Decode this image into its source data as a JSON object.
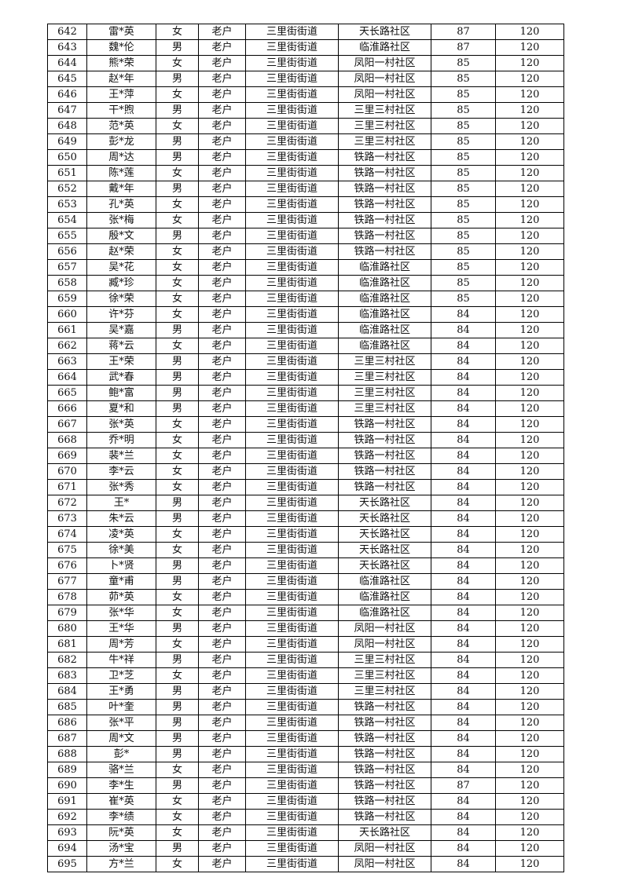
{
  "table": {
    "rows": [
      [
        "642",
        "雷*英",
        "女",
        "老户",
        "三里街街道",
        "天长路社区",
        "87",
        "120"
      ],
      [
        "643",
        "魏*伦",
        "男",
        "老户",
        "三里街街道",
        "临淮路社区",
        "87",
        "120"
      ],
      [
        "644",
        "熊*荣",
        "女",
        "老户",
        "三里街街道",
        "凤阳一村社区",
        "85",
        "120"
      ],
      [
        "645",
        "赵*年",
        "男",
        "老户",
        "三里街街道",
        "凤阳一村社区",
        "85",
        "120"
      ],
      [
        "646",
        "王*萍",
        "女",
        "老户",
        "三里街街道",
        "凤阳一村社区",
        "85",
        "120"
      ],
      [
        "647",
        "干*煦",
        "男",
        "老户",
        "三里街街道",
        "三里三村社区",
        "85",
        "120"
      ],
      [
        "648",
        "范*英",
        "女",
        "老户",
        "三里街街道",
        "三里三村社区",
        "85",
        "120"
      ],
      [
        "649",
        "彭*龙",
        "男",
        "老户",
        "三里街街道",
        "三里三村社区",
        "85",
        "120"
      ],
      [
        "650",
        "周*达",
        "男",
        "老户",
        "三里街街道",
        "铁路一村社区",
        "85",
        "120"
      ],
      [
        "651",
        "陈*莲",
        "女",
        "老户",
        "三里街街道",
        "铁路一村社区",
        "85",
        "120"
      ],
      [
        "652",
        "戴*年",
        "男",
        "老户",
        "三里街街道",
        "铁路一村社区",
        "85",
        "120"
      ],
      [
        "653",
        "孔*英",
        "女",
        "老户",
        "三里街街道",
        "铁路一村社区",
        "85",
        "120"
      ],
      [
        "654",
        "张*梅",
        "女",
        "老户",
        "三里街街道",
        "铁路一村社区",
        "85",
        "120"
      ],
      [
        "655",
        "殷*文",
        "男",
        "老户",
        "三里街街道",
        "铁路一村社区",
        "85",
        "120"
      ],
      [
        "656",
        "赵*荣",
        "女",
        "老户",
        "三里街街道",
        "铁路一村社区",
        "85",
        "120"
      ],
      [
        "657",
        "吴*花",
        "女",
        "老户",
        "三里街街道",
        "临淮路社区",
        "85",
        "120"
      ],
      [
        "658",
        "臧*珍",
        "女",
        "老户",
        "三里街街道",
        "临淮路社区",
        "85",
        "120"
      ],
      [
        "659",
        "徐*荣",
        "女",
        "老户",
        "三里街街道",
        "临淮路社区",
        "85",
        "120"
      ],
      [
        "660",
        "许*芬",
        "女",
        "老户",
        "三里街街道",
        "临淮路社区",
        "84",
        "120"
      ],
      [
        "661",
        "吴*嘉",
        "男",
        "老户",
        "三里街街道",
        "临淮路社区",
        "84",
        "120"
      ],
      [
        "662",
        "蒋*云",
        "女",
        "老户",
        "三里街街道",
        "临淮路社区",
        "84",
        "120"
      ],
      [
        "663",
        "王*荣",
        "男",
        "老户",
        "三里街街道",
        "三里三村社区",
        "84",
        "120"
      ],
      [
        "664",
        "武*春",
        "男",
        "老户",
        "三里街街道",
        "三里三村社区",
        "84",
        "120"
      ],
      [
        "665",
        "鲍*富",
        "男",
        "老户",
        "三里街街道",
        "三里三村社区",
        "84",
        "120"
      ],
      [
        "666",
        "夏*和",
        "男",
        "老户",
        "三里街街道",
        "三里三村社区",
        "84",
        "120"
      ],
      [
        "667",
        "张*英",
        "女",
        "老户",
        "三里街街道",
        "铁路一村社区",
        "84",
        "120"
      ],
      [
        "668",
        "乔*明",
        "女",
        "老户",
        "三里街街道",
        "铁路一村社区",
        "84",
        "120"
      ],
      [
        "669",
        "裴*兰",
        "女",
        "老户",
        "三里街街道",
        "铁路一村社区",
        "84",
        "120"
      ],
      [
        "670",
        "李*云",
        "女",
        "老户",
        "三里街街道",
        "铁路一村社区",
        "84",
        "120"
      ],
      [
        "671",
        "张*秀",
        "女",
        "老户",
        "三里街街道",
        "铁路一村社区",
        "84",
        "120"
      ],
      [
        "672",
        "王*",
        "男",
        "老户",
        "三里街街道",
        "天长路社区",
        "84",
        "120"
      ],
      [
        "673",
        "朱*云",
        "男",
        "老户",
        "三里街街道",
        "天长路社区",
        "84",
        "120"
      ],
      [
        "674",
        "凌*英",
        "女",
        "老户",
        "三里街街道",
        "天长路社区",
        "84",
        "120"
      ],
      [
        "675",
        "徐*美",
        "女",
        "老户",
        "三里街街道",
        "天长路社区",
        "84",
        "120"
      ],
      [
        "676",
        "卜*贤",
        "男",
        "老户",
        "三里街街道",
        "天长路社区",
        "84",
        "120"
      ],
      [
        "677",
        "童*甫",
        "男",
        "老户",
        "三里街街道",
        "临淮路社区",
        "84",
        "120"
      ],
      [
        "678",
        "茆*英",
        "女",
        "老户",
        "三里街街道",
        "临淮路社区",
        "84",
        "120"
      ],
      [
        "679",
        "张*华",
        "女",
        "老户",
        "三里街街道",
        "临淮路社区",
        "84",
        "120"
      ],
      [
        "680",
        "王*华",
        "男",
        "老户",
        "三里街街道",
        "凤阳一村社区",
        "84",
        "120"
      ],
      [
        "681",
        "周*芳",
        "女",
        "老户",
        "三里街街道",
        "凤阳一村社区",
        "84",
        "120"
      ],
      [
        "682",
        "牛*祥",
        "男",
        "老户",
        "三里街街道",
        "三里三村社区",
        "84",
        "120"
      ],
      [
        "683",
        "卫*芝",
        "女",
        "老户",
        "三里街街道",
        "三里三村社区",
        "84",
        "120"
      ],
      [
        "684",
        "王*勇",
        "男",
        "老户",
        "三里街街道",
        "三里三村社区",
        "84",
        "120"
      ],
      [
        "685",
        "叶*奎",
        "男",
        "老户",
        "三里街街道",
        "铁路一村社区",
        "84",
        "120"
      ],
      [
        "686",
        "张*平",
        "男",
        "老户",
        "三里街街道",
        "铁路一村社区",
        "84",
        "120"
      ],
      [
        "687",
        "周*文",
        "男",
        "老户",
        "三里街街道",
        "铁路一村社区",
        "84",
        "120"
      ],
      [
        "688",
        "彭*",
        "男",
        "老户",
        "三里街街道",
        "铁路一村社区",
        "84",
        "120"
      ],
      [
        "689",
        "骆*兰",
        "女",
        "老户",
        "三里街街道",
        "铁路一村社区",
        "84",
        "120"
      ],
      [
        "690",
        "李*生",
        "男",
        "老户",
        "三里街街道",
        "铁路一村社区",
        "87",
        "120"
      ],
      [
        "691",
        "崔*英",
        "女",
        "老户",
        "三里街街道",
        "铁路一村社区",
        "84",
        "120"
      ],
      [
        "692",
        "李*绩",
        "女",
        "老户",
        "三里街街道",
        "铁路一村社区",
        "84",
        "120"
      ],
      [
        "693",
        "阮*英",
        "女",
        "老户",
        "三里街街道",
        "天长路社区",
        "84",
        "120"
      ],
      [
        "694",
        "汤*宝",
        "男",
        "老户",
        "三里街街道",
        "凤阳一村社区",
        "84",
        "120"
      ],
      [
        "695",
        "方*兰",
        "女",
        "老户",
        "三里街街道",
        "凤阳一村社区",
        "84",
        "120"
      ]
    ]
  }
}
